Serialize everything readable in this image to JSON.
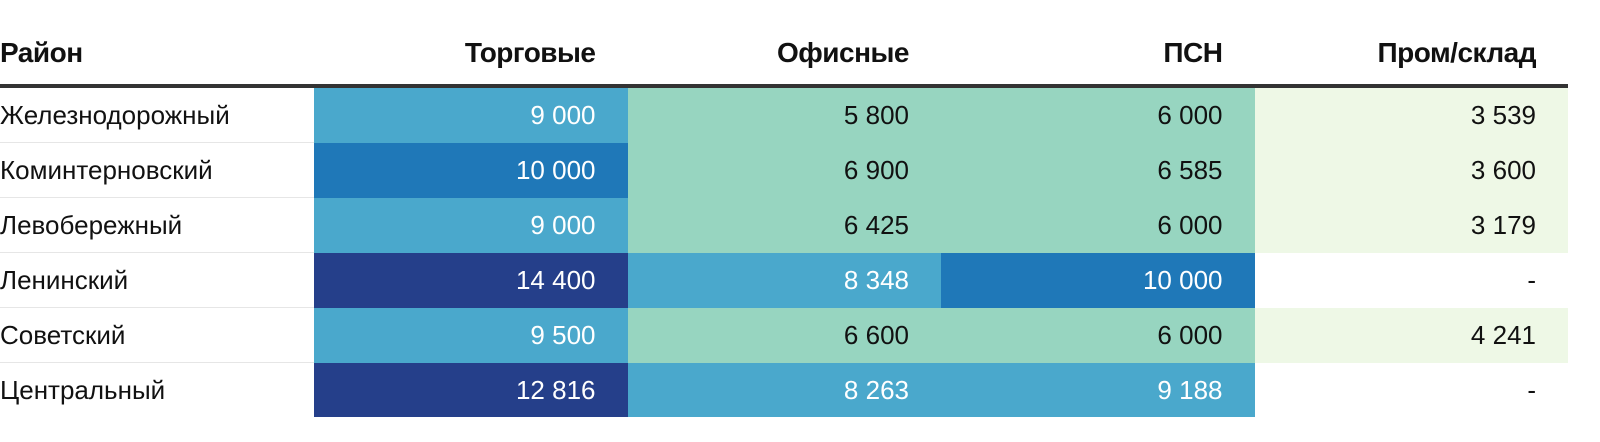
{
  "chart_data": {
    "type": "table",
    "columns": [
      "Район",
      "Торговые",
      "Офисные",
      "ПСН",
      "Пром/склад"
    ],
    "rows": [
      {
        "name": "Железнодорожный",
        "values": [
          9000,
          5800,
          6000,
          3539
        ],
        "labels": [
          "9 000",
          "5 800",
          "6 000",
          "3 539"
        ]
      },
      {
        "name": "Коминтерновский",
        "values": [
          10000,
          6900,
          6585,
          3600
        ],
        "labels": [
          "10 000",
          "6 900",
          "6 585",
          "3 600"
        ]
      },
      {
        "name": "Левобережный",
        "values": [
          9000,
          6425,
          6000,
          3179
        ],
        "labels": [
          "9 000",
          "6 425",
          "6 000",
          "3 179"
        ]
      },
      {
        "name": "Ленинский",
        "values": [
          14400,
          8348,
          10000,
          null
        ],
        "labels": [
          "14 400",
          "8 348",
          "10 000",
          "-"
        ]
      },
      {
        "name": "Советский",
        "values": [
          9500,
          6600,
          6000,
          4241
        ],
        "labels": [
          "9 500",
          "6 600",
          "6 000",
          "4 241"
        ]
      },
      {
        "name": "Центральный",
        "values": [
          12816,
          8263,
          9188,
          null
        ],
        "labels": [
          "12 816",
          "8 263",
          "9 188",
          "-"
        ]
      }
    ],
    "color_scale": [
      {
        "from": 12000,
        "color": "#253f8a",
        "text": "#ffffff"
      },
      {
        "from": 10000,
        "color": "#1f78b8",
        "text": "#ffffff"
      },
      {
        "from": 7000,
        "color": "#4aa8cc",
        "text": "#ffffff"
      },
      {
        "from": 4500,
        "color": "#97d5c0",
        "text": "#111111"
      },
      {
        "from": 0,
        "color": "#eef8e6",
        "text": "#111111"
      }
    ],
    "empty_color": "#ffffff"
  }
}
